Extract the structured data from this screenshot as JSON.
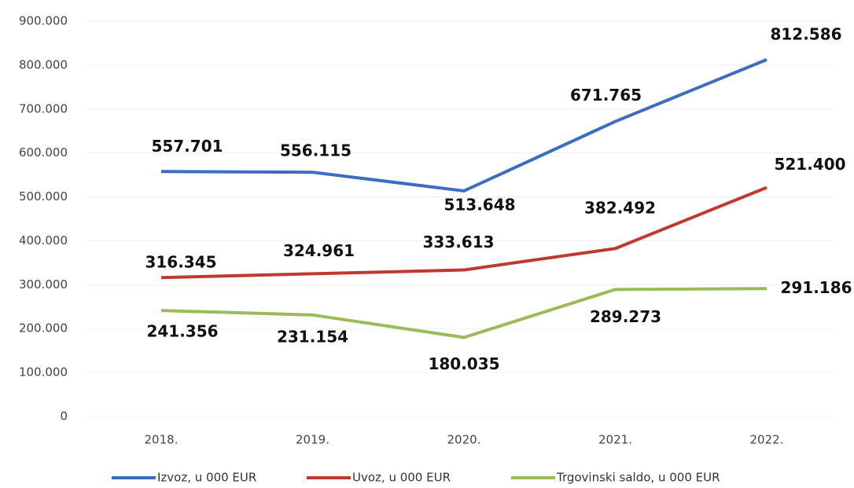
{
  "chart_data": {
    "type": "line",
    "categories": [
      "2018.",
      "2019.",
      "2020.",
      "2021.",
      "2022."
    ],
    "series": [
      {
        "name": "Izvoz, u 000 EUR",
        "color": "#3c6dbf",
        "values": [
          557701,
          556115,
          513648,
          671765,
          812586
        ],
        "value_labels": [
          "557.701",
          "556.115",
          "513.648",
          "671.765",
          "812.586"
        ]
      },
      {
        "name": "Uvoz, u 000 EUR",
        "color": "#c0392f",
        "values": [
          316345,
          324961,
          333613,
          382492,
          521400
        ],
        "value_labels": [
          "316.345",
          "324.961",
          "333.613",
          "382.492",
          "521.400"
        ]
      },
      {
        "name": "Trgovinski saldo, u 000 EUR",
        "color": "#9bbb59",
        "values": [
          241356,
          231154,
          180035,
          289273,
          291186
        ],
        "value_labels": [
          "241.356",
          "231.154",
          "180.035",
          "289.273",
          "291.186"
        ]
      }
    ],
    "ylim": [
      0,
      900000
    ],
    "yticks": [
      0,
      {
        "value": 100000,
        "label": "100.000"
      },
      {
        "value": 200000,
        "label": "200.000"
      },
      {
        "value": 300000,
        "label": "300.000"
      },
      {
        "value": 400000,
        "label": "400.000"
      },
      {
        "value": 500000,
        "label": "500.000"
      },
      {
        "value": 600000,
        "label": "600.000"
      },
      {
        "value": 700000,
        "label": "700.000"
      },
      {
        "value": 800000,
        "label": "800.000"
      },
      {
        "value": 900000,
        "label": "900.000"
      }
    ],
    "grid": true,
    "legend": "bottom"
  }
}
